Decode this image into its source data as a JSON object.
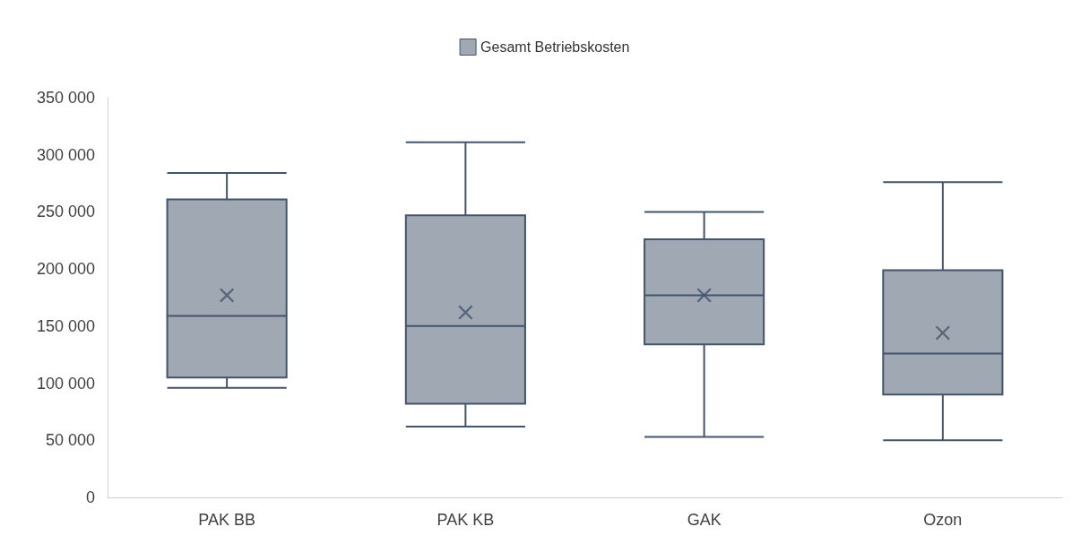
{
  "chart_data": {
    "type": "box",
    "categories": [
      "PAK BB",
      "PAK KB",
      "GAK",
      "Ozon"
    ],
    "series": [
      {
        "name": "Gesamt Betriebskosten",
        "color": "#a0a8b4",
        "boxes": [
          {
            "low": 96000,
            "q1": 105000,
            "median": 159000,
            "q3": 261000,
            "high": 284000,
            "mean": 177000
          },
          {
            "low": 62000,
            "q1": 82000,
            "median": 150000,
            "q3": 247000,
            "high": 311000,
            "mean": 162000
          },
          {
            "low": 53000,
            "q1": 134000,
            "median": 177000,
            "q3": 226000,
            "high": 250000,
            "mean": 177000
          },
          {
            "low": 50000,
            "q1": 90000,
            "median": 126000,
            "q3": 199000,
            "high": 276000,
            "mean": 144000
          }
        ]
      }
    ],
    "ylim": [
      0,
      350000
    ],
    "yticks": [
      {
        "value": 0,
        "label": "0"
      },
      {
        "value": 50000,
        "label": "50 000"
      },
      {
        "value": 100000,
        "label": "100 000"
      },
      {
        "value": 150000,
        "label": "150 000"
      },
      {
        "value": 200000,
        "label": "200 000"
      },
      {
        "value": 250000,
        "label": "250 000"
      },
      {
        "value": 300000,
        "label": "300 000"
      },
      {
        "value": 350000,
        "label": "350 000"
      }
    ],
    "grid": false,
    "legend": "top"
  }
}
